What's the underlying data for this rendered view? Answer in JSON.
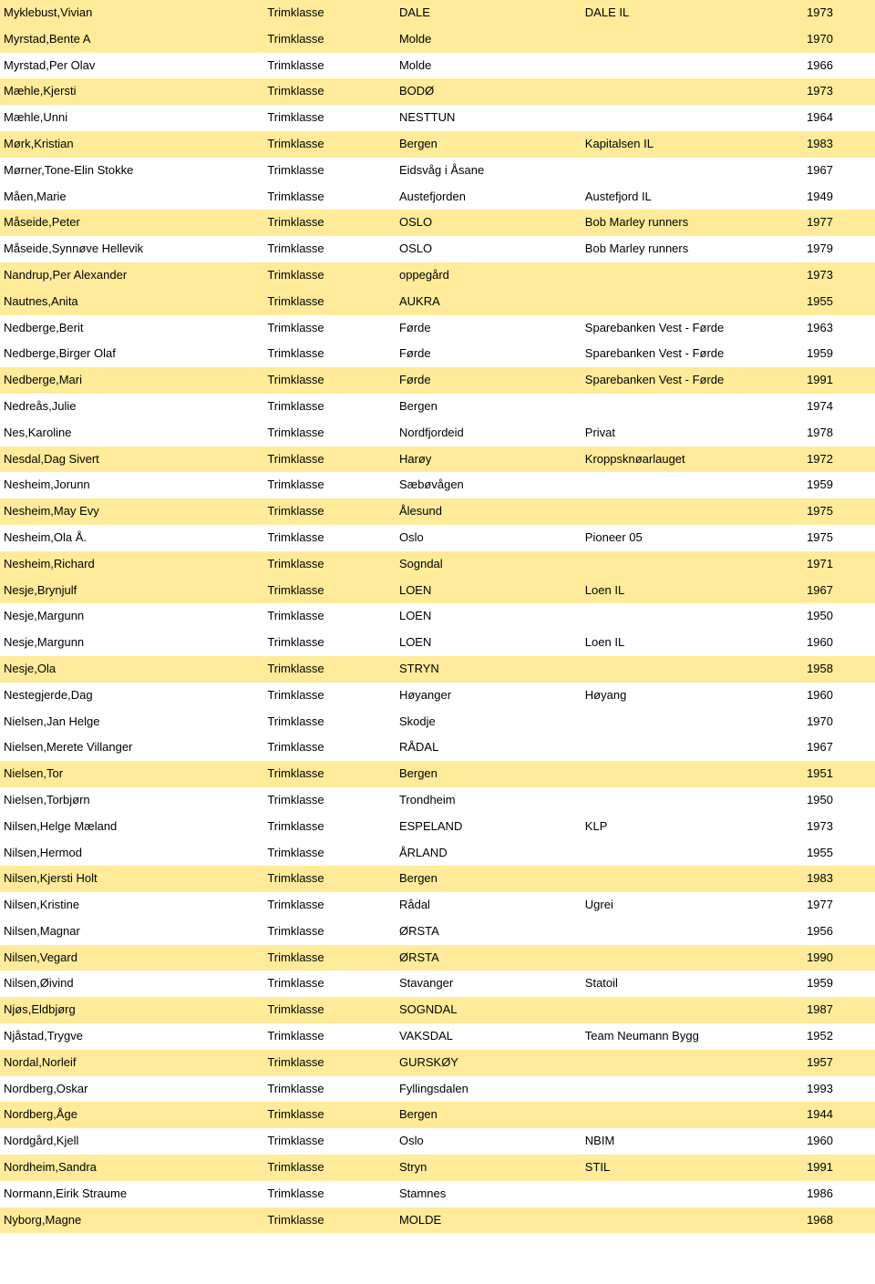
{
  "colors": {
    "highlight_bg": "#ffeb99",
    "plain_bg": "#ffffff",
    "text": "#000000"
  },
  "font_size": 13,
  "columns": [
    "name",
    "class",
    "place",
    "club",
    "year"
  ],
  "rows": [
    {
      "hl": true,
      "name": "Myklebust,Vivian",
      "class": "Trimklasse",
      "place": "DALE",
      "club": "DALE IL",
      "year": "1973"
    },
    {
      "hl": true,
      "name": "Myrstad,Bente A",
      "class": "Trimklasse",
      "place": "Molde",
      "club": "",
      "year": "1970"
    },
    {
      "hl": false,
      "name": "Myrstad,Per Olav",
      "class": "Trimklasse",
      "place": "Molde",
      "club": "",
      "year": "1966"
    },
    {
      "hl": true,
      "name": "Mæhle,Kjersti",
      "class": "Trimklasse",
      "place": "BODØ",
      "club": "",
      "year": "1973"
    },
    {
      "hl": false,
      "name": "Mæhle,Unni",
      "class": "Trimklasse",
      "place": "NESTTUN",
      "club": "",
      "year": "1964"
    },
    {
      "hl": true,
      "name": "Mørk,Kristian",
      "class": "Trimklasse",
      "place": "Bergen",
      "club": "Kapitalsen IL",
      "year": "1983"
    },
    {
      "hl": false,
      "name": "Mørner,Tone-Elin Stokke",
      "class": "Trimklasse",
      "place": "Eidsvåg i Åsane",
      "club": "",
      "year": "1967"
    },
    {
      "hl": false,
      "name": "Måen,Marie",
      "class": "Trimklasse",
      "place": "Austefjorden",
      "club": "Austefjord IL",
      "year": "1949"
    },
    {
      "hl": true,
      "name": "Måseide,Peter",
      "class": "Trimklasse",
      "place": "OSLO",
      "club": "Bob Marley runners",
      "year": "1977"
    },
    {
      "hl": false,
      "name": "Måseide,Synnøve Hellevik",
      "class": "Trimklasse",
      "place": "OSLO",
      "club": "Bob Marley runners",
      "year": "1979"
    },
    {
      "hl": true,
      "name": "Nandrup,Per Alexander",
      "class": "Trimklasse",
      "place": "oppegård",
      "club": "",
      "year": "1973"
    },
    {
      "hl": true,
      "name": "Nautnes,Anita",
      "class": "Trimklasse",
      "place": "AUKRA",
      "club": "",
      "year": "1955"
    },
    {
      "hl": false,
      "name": "Nedberge,Berit",
      "class": "Trimklasse",
      "place": "Førde",
      "club": "Sparebanken Vest - Førde",
      "year": "1963"
    },
    {
      "hl": false,
      "name": "Nedberge,Birger Olaf",
      "class": "Trimklasse",
      "place": "Førde",
      "club": "Sparebanken Vest - Førde",
      "year": "1959"
    },
    {
      "hl": true,
      "name": "Nedberge,Mari",
      "class": "Trimklasse",
      "place": "Førde",
      "club": "Sparebanken Vest - Førde",
      "year": "1991"
    },
    {
      "hl": false,
      "name": "Nedreås,Julie",
      "class": "Trimklasse",
      "place": "Bergen",
      "club": "",
      "year": "1974"
    },
    {
      "hl": false,
      "name": "Nes,Karoline",
      "class": "Trimklasse",
      "place": "Nordfjordeid",
      "club": "Privat",
      "year": "1978"
    },
    {
      "hl": true,
      "name": "Nesdal,Dag Sivert",
      "class": "Trimklasse",
      "place": "Harøy",
      "club": "Kroppsknøarlauget",
      "year": "1972"
    },
    {
      "hl": false,
      "name": "Nesheim,Jorunn",
      "class": "Trimklasse",
      "place": "Sæbøvågen",
      "club": "",
      "year": "1959"
    },
    {
      "hl": true,
      "name": "Nesheim,May Evy",
      "class": "Trimklasse",
      "place": "Ålesund",
      "club": "",
      "year": "1975"
    },
    {
      "hl": false,
      "name": "Nesheim,Ola Å.",
      "class": "Trimklasse",
      "place": "Oslo",
      "club": "Pioneer 05",
      "year": "1975"
    },
    {
      "hl": true,
      "name": "Nesheim,Richard",
      "class": "Trimklasse",
      "place": "Sogndal",
      "club": "",
      "year": "1971"
    },
    {
      "hl": true,
      "name": "Nesje,Brynjulf",
      "class": "Trimklasse",
      "place": "LOEN",
      "club": "Loen IL",
      "year": "1967"
    },
    {
      "hl": false,
      "name": "Nesje,Margunn",
      "class": "Trimklasse",
      "place": "LOEN",
      "club": "",
      "year": "1950"
    },
    {
      "hl": false,
      "name": "Nesje,Margunn",
      "class": "Trimklasse",
      "place": "LOEN",
      "club": "Loen IL",
      "year": "1960"
    },
    {
      "hl": true,
      "name": "Nesje,Ola",
      "class": "Trimklasse",
      "place": "STRYN",
      "club": "",
      "year": "1958"
    },
    {
      "hl": false,
      "name": "Nestegjerde,Dag",
      "class": "Trimklasse",
      "place": "Høyanger",
      "club": "Høyang",
      "year": "1960"
    },
    {
      "hl": false,
      "name": "Nielsen,Jan Helge",
      "class": "Trimklasse",
      "place": "Skodje",
      "club": "",
      "year": "1970"
    },
    {
      "hl": false,
      "name": "Nielsen,Merete Villanger",
      "class": "Trimklasse",
      "place": "RÅDAL",
      "club": "",
      "year": "1967"
    },
    {
      "hl": true,
      "name": "Nielsen,Tor",
      "class": "Trimklasse",
      "place": "Bergen",
      "club": "",
      "year": "1951"
    },
    {
      "hl": false,
      "name": "Nielsen,Torbjørn",
      "class": "Trimklasse",
      "place": "Trondheim",
      "club": "",
      "year": "1950"
    },
    {
      "hl": false,
      "name": "Nilsen,Helge Mæland",
      "class": "Trimklasse",
      "place": "ESPELAND",
      "club": "KLP",
      "year": "1973"
    },
    {
      "hl": false,
      "name": "Nilsen,Hermod",
      "class": "Trimklasse",
      "place": "ÅRLAND",
      "club": "",
      "year": "1955"
    },
    {
      "hl": true,
      "name": "Nilsen,Kjersti Holt",
      "class": "Trimklasse",
      "place": "Bergen",
      "club": "",
      "year": "1983"
    },
    {
      "hl": false,
      "name": "Nilsen,Kristine",
      "class": "Trimklasse",
      "place": "Rådal",
      "club": "Ugrei",
      "year": "1977"
    },
    {
      "hl": false,
      "name": "Nilsen,Magnar",
      "class": "Trimklasse",
      "place": "ØRSTA",
      "club": "",
      "year": "1956"
    },
    {
      "hl": true,
      "name": "Nilsen,Vegard",
      "class": "Trimklasse",
      "place": "ØRSTA",
      "club": "",
      "year": "1990"
    },
    {
      "hl": false,
      "name": "Nilsen,Øivind",
      "class": "Trimklasse",
      "place": "Stavanger",
      "club": "Statoil",
      "year": "1959"
    },
    {
      "hl": true,
      "name": "Njøs,Eldbjørg",
      "class": "Trimklasse",
      "place": "SOGNDAL",
      "club": "",
      "year": "1987"
    },
    {
      "hl": false,
      "name": "Njåstad,Trygve",
      "class": "Trimklasse",
      "place": "VAKSDAL",
      "club": "Team Neumann Bygg",
      "year": "1952"
    },
    {
      "hl": true,
      "name": "Nordal,Norleif",
      "class": "Trimklasse",
      "place": "GURSKØY",
      "club": "",
      "year": "1957"
    },
    {
      "hl": false,
      "name": "Nordberg,Oskar",
      "class": "Trimklasse",
      "place": "Fyllingsdalen",
      "club": "",
      "year": "1993"
    },
    {
      "hl": true,
      "name": "Nordberg,Åge",
      "class": "Trimklasse",
      "place": "Bergen",
      "club": "",
      "year": "1944"
    },
    {
      "hl": false,
      "name": "Nordgård,Kjell",
      "class": "Trimklasse",
      "place": "Oslo",
      "club": "NBIM",
      "year": "1960"
    },
    {
      "hl": true,
      "name": "Nordheim,Sandra",
      "class": "Trimklasse",
      "place": "Stryn",
      "club": "STIL",
      "year": "1991"
    },
    {
      "hl": false,
      "name": "Normann,Eirik Straume",
      "class": "Trimklasse",
      "place": "Stamnes",
      "club": "",
      "year": "1986"
    },
    {
      "hl": true,
      "name": "Nyborg,Magne",
      "class": "Trimklasse",
      "place": "MOLDE",
      "club": "",
      "year": "1968"
    }
  ]
}
